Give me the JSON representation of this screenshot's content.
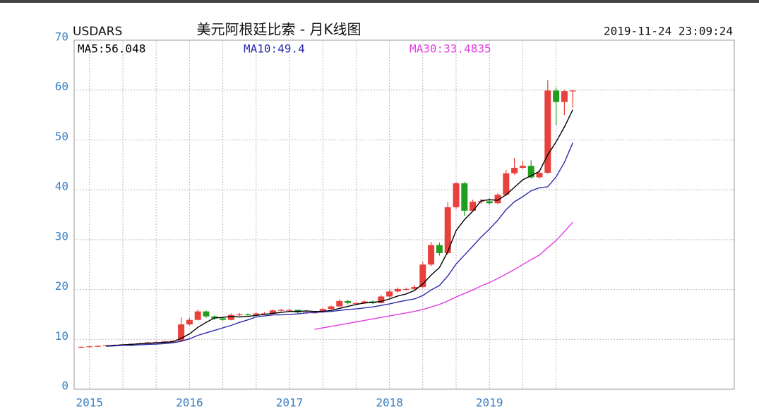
{
  "chart_data": {
    "type": "candlestick",
    "symbol": "USDARS",
    "title": "美元阿根廷比索 - 月K线图",
    "timestamp": "2019-11-24 23:09:24",
    "categories": [
      null,
      "2015",
      null,
      null,
      null,
      null,
      null,
      null,
      null,
      null,
      null,
      null,
      null,
      "2016",
      null,
      null,
      null,
      null,
      null,
      null,
      null,
      null,
      null,
      null,
      null,
      "2017",
      null,
      null,
      null,
      null,
      null,
      null,
      null,
      null,
      null,
      null,
      null,
      "2018",
      null,
      null,
      null,
      null,
      null,
      null,
      null,
      null,
      null,
      null,
      null,
      "2019",
      null,
      null,
      null,
      null,
      null,
      null,
      null,
      null,
      null,
      null
    ],
    "open": [
      8.4,
      8.5,
      8.6,
      8.7,
      8.8,
      8.9,
      9.0,
      9.1,
      9.2,
      9.4,
      9.45,
      9.6,
      9.7,
      13.0,
      13.9,
      15.6,
      14.6,
      14.2,
      13.9,
      14.9,
      15.0,
      14.9,
      15.2,
      15.2,
      15.8,
      15.9,
      15.9,
      15.4,
      15.4,
      15.4,
      16.1,
      16.6,
      17.7,
      17.3,
      17.3,
      17.6,
      17.3,
      18.6,
      19.6,
      20.1,
      20.1,
      20.5,
      25.0,
      28.9,
      27.3,
      36.5,
      41.3,
      35.8,
      37.6,
      37.7,
      37.3,
      39.0,
      43.3,
      44.4,
      44.8,
      42.5,
      43.4,
      59.9,
      57.6,
      59.8
    ],
    "high": [
      8.6,
      8.7,
      8.8,
      8.9,
      9.0,
      9.1,
      9.2,
      9.3,
      9.5,
      9.6,
      9.7,
      9.8,
      14.4,
      14.3,
      16.0,
      15.8,
      14.8,
      14.5,
      15.2,
      15.3,
      15.2,
      15.4,
      15.5,
      16.0,
      16.1,
      16.1,
      16.0,
      15.6,
      15.6,
      16.3,
      16.8,
      18.0,
      17.9,
      17.5,
      17.8,
      17.8,
      18.9,
      19.9,
      20.4,
      20.4,
      20.9,
      25.5,
      29.5,
      29.4,
      37.5,
      41.5,
      41.6,
      38.0,
      38.2,
      38.3,
      39.3,
      44.0,
      46.4,
      45.8,
      45.9,
      44.0,
      62.0,
      60.5,
      60.0,
      60.0
    ],
    "low": [
      8.3,
      8.4,
      8.5,
      8.6,
      8.7,
      8.8,
      8.9,
      9.0,
      9.1,
      9.3,
      9.4,
      9.5,
      9.6,
      12.8,
      13.8,
      14.3,
      13.9,
      13.7,
      13.8,
      14.7,
      14.7,
      14.8,
      15.0,
      15.1,
      15.6,
      15.6,
      15.2,
      15.1,
      15.2,
      15.3,
      16.0,
      16.5,
      17.0,
      17.0,
      17.1,
      17.1,
      17.2,
      18.4,
      19.3,
      19.8,
      20.0,
      20.3,
      24.7,
      26.8,
      27.0,
      36.2,
      34.8,
      35.6,
      37.2,
      37.0,
      37.1,
      38.8,
      43.0,
      44.1,
      42.2,
      42.2,
      43.2,
      53.0,
      55.0,
      56.5
    ],
    "close": [
      8.5,
      8.6,
      8.7,
      8.8,
      8.9,
      9.0,
      9.1,
      9.2,
      9.4,
      9.45,
      9.6,
      9.7,
      13.0,
      13.9,
      15.6,
      14.6,
      14.2,
      13.9,
      14.9,
      15.0,
      14.9,
      15.2,
      15.2,
      15.8,
      15.9,
      15.9,
      15.4,
      15.4,
      15.4,
      16.1,
      16.6,
      17.7,
      17.3,
      17.3,
      17.6,
      17.3,
      18.6,
      19.6,
      20.1,
      20.1,
      20.5,
      25.0,
      28.9,
      27.3,
      36.5,
      41.3,
      35.8,
      37.6,
      37.7,
      37.3,
      39.0,
      43.3,
      44.4,
      44.8,
      42.5,
      43.4,
      59.9,
      57.6,
      59.8,
      59.9
    ],
    "up_color": "#e8403c",
    "down_color": "#1f9e1f",
    "series": [
      {
        "name": "MA5:56.048",
        "color": "#000000",
        "values": [
          null,
          null,
          null,
          8.7,
          8.8,
          8.9,
          9.0,
          9.1,
          9.2,
          9.3,
          9.4,
          9.5,
          10.2,
          11.1,
          12.4,
          13.4,
          14.3,
          14.4,
          14.6,
          14.5,
          14.6,
          14.8,
          15.0,
          15.2,
          15.4,
          15.6,
          15.6,
          15.7,
          15.6,
          15.6,
          15.8,
          16.2,
          16.6,
          17.0,
          17.3,
          17.4,
          17.6,
          18.1,
          18.7,
          19.1,
          19.8,
          21.1,
          22.9,
          24.4,
          27.6,
          31.8,
          34.0,
          35.7,
          37.8,
          38.0,
          37.9,
          39.0,
          40.5,
          42.0,
          42.8,
          43.7,
          47.0,
          49.6,
          52.6,
          56.048
        ]
      },
      {
        "name": "MA10:49.4",
        "color": "#2b2ba8",
        "values": [
          null,
          null,
          null,
          8.6,
          8.7,
          8.8,
          8.8,
          8.9,
          9.0,
          9.05,
          9.15,
          9.3,
          9.6,
          10.1,
          10.8,
          11.3,
          11.8,
          12.3,
          12.8,
          13.4,
          13.9,
          14.5,
          14.7,
          14.9,
          14.9,
          15.0,
          15.1,
          15.3,
          15.4,
          15.5,
          15.6,
          15.8,
          16.0,
          16.1,
          16.3,
          16.5,
          16.8,
          17.1,
          17.5,
          17.8,
          18.1,
          18.8,
          19.9,
          20.8,
          22.7,
          25.1,
          26.9,
          28.7,
          30.5,
          32.1,
          33.9,
          36.0,
          37.6,
          38.6,
          39.8,
          40.4,
          40.6,
          42.6,
          45.5,
          49.4
        ]
      },
      {
        "name": "MA30:33.4835",
        "color": "#e040e0",
        "values": [
          null,
          null,
          null,
          null,
          null,
          null,
          null,
          null,
          null,
          null,
          null,
          null,
          null,
          null,
          null,
          null,
          null,
          null,
          null,
          null,
          null,
          null,
          null,
          null,
          null,
          null,
          null,
          null,
          12.0,
          12.3,
          12.6,
          12.9,
          13.2,
          13.5,
          13.8,
          14.1,
          14.4,
          14.7,
          15.0,
          15.3,
          15.6,
          16.0,
          16.5,
          17.0,
          17.7,
          18.5,
          19.2,
          19.9,
          20.7,
          21.4,
          22.2,
          23.1,
          24.0,
          25.0,
          26.0,
          26.9,
          28.4,
          29.8,
          31.6,
          33.4835
        ]
      }
    ],
    "ylim": [
      0,
      70
    ],
    "yticks": [
      0,
      10,
      20,
      30,
      40,
      50,
      60,
      70
    ],
    "grid": true
  }
}
